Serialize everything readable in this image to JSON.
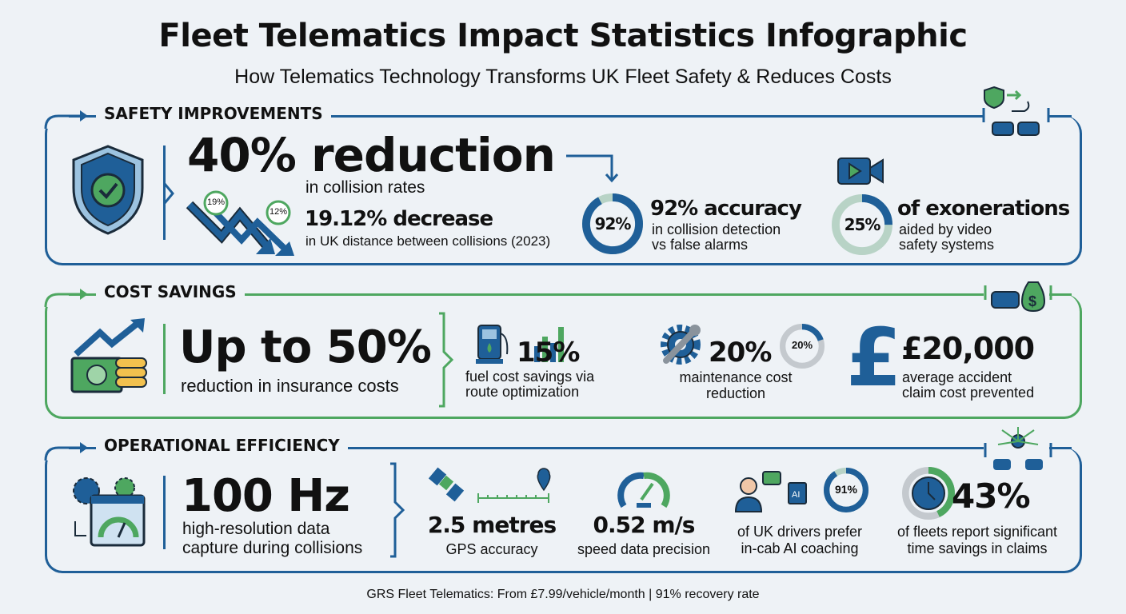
{
  "title": "Fleet Telematics Impact Statistics Infographic",
  "subtitle": "How Telematics Technology Transforms UK Fleet Safety & Reduces Costs",
  "colors": {
    "blue": "#1f5f98",
    "green": "#4ea760",
    "background": "#eef2f6",
    "ring_track": "#b8d3c6"
  },
  "safety": {
    "label": "SAFETY IMPROVEMENTS",
    "headline": "40% reduction",
    "headline_sub": "in collision rates",
    "badge1": "19%",
    "badge2": "12%",
    "decrease": "19.12% decrease",
    "decrease_sub": "in UK distance between collisions (2023)",
    "accuracy_ring": "92%",
    "accuracy_value": 92,
    "accuracy_title": "92% accuracy",
    "accuracy_sub1": "in collision detection",
    "accuracy_sub2": "vs false alarms",
    "exon_ring": "25%",
    "exon_value": 25,
    "exon_title": "of exonerations",
    "exon_sub1": "aided by video",
    "exon_sub2": "safety systems"
  },
  "cost": {
    "label": "COST SAVINGS",
    "headline": "Up to 50%",
    "headline_sub": "reduction in insurance costs",
    "fuel_value": "15%",
    "fuel_sub1": "fuel cost savings via",
    "fuel_sub2": "route optimization",
    "maint_value": "20%",
    "maint_ring": "20%",
    "maint_ring_value": 20,
    "maint_sub1": "maintenance cost",
    "maint_sub2": "reduction",
    "pound_symbol": "£",
    "claim_value": "£20,000",
    "claim_sub1": "average accident",
    "claim_sub2": "claim cost prevented"
  },
  "ops": {
    "label": "OPERATIONAL EFFICIENCY",
    "headline": "100 Hz",
    "headline_sub1": "high-resolution data",
    "headline_sub2": "capture during collisions",
    "gps_value": "2.5 metres",
    "gps_sub": "GPS accuracy",
    "speed_value": "0.52 m/s",
    "speed_sub": "speed data precision",
    "ai_chip": "AI",
    "ai_ring": "91%",
    "ai_ring_value": 91,
    "ai_sub1": "of UK drivers prefer",
    "ai_sub2": "in-cab AI coaching",
    "claims_value": "43%",
    "claims_ring_value": 43,
    "claims_sub1": "of fleets report significant",
    "claims_sub2": "time savings in claims"
  },
  "footer": "GRS Fleet Telematics: From £7.99/vehicle/month | 91% recovery rate"
}
